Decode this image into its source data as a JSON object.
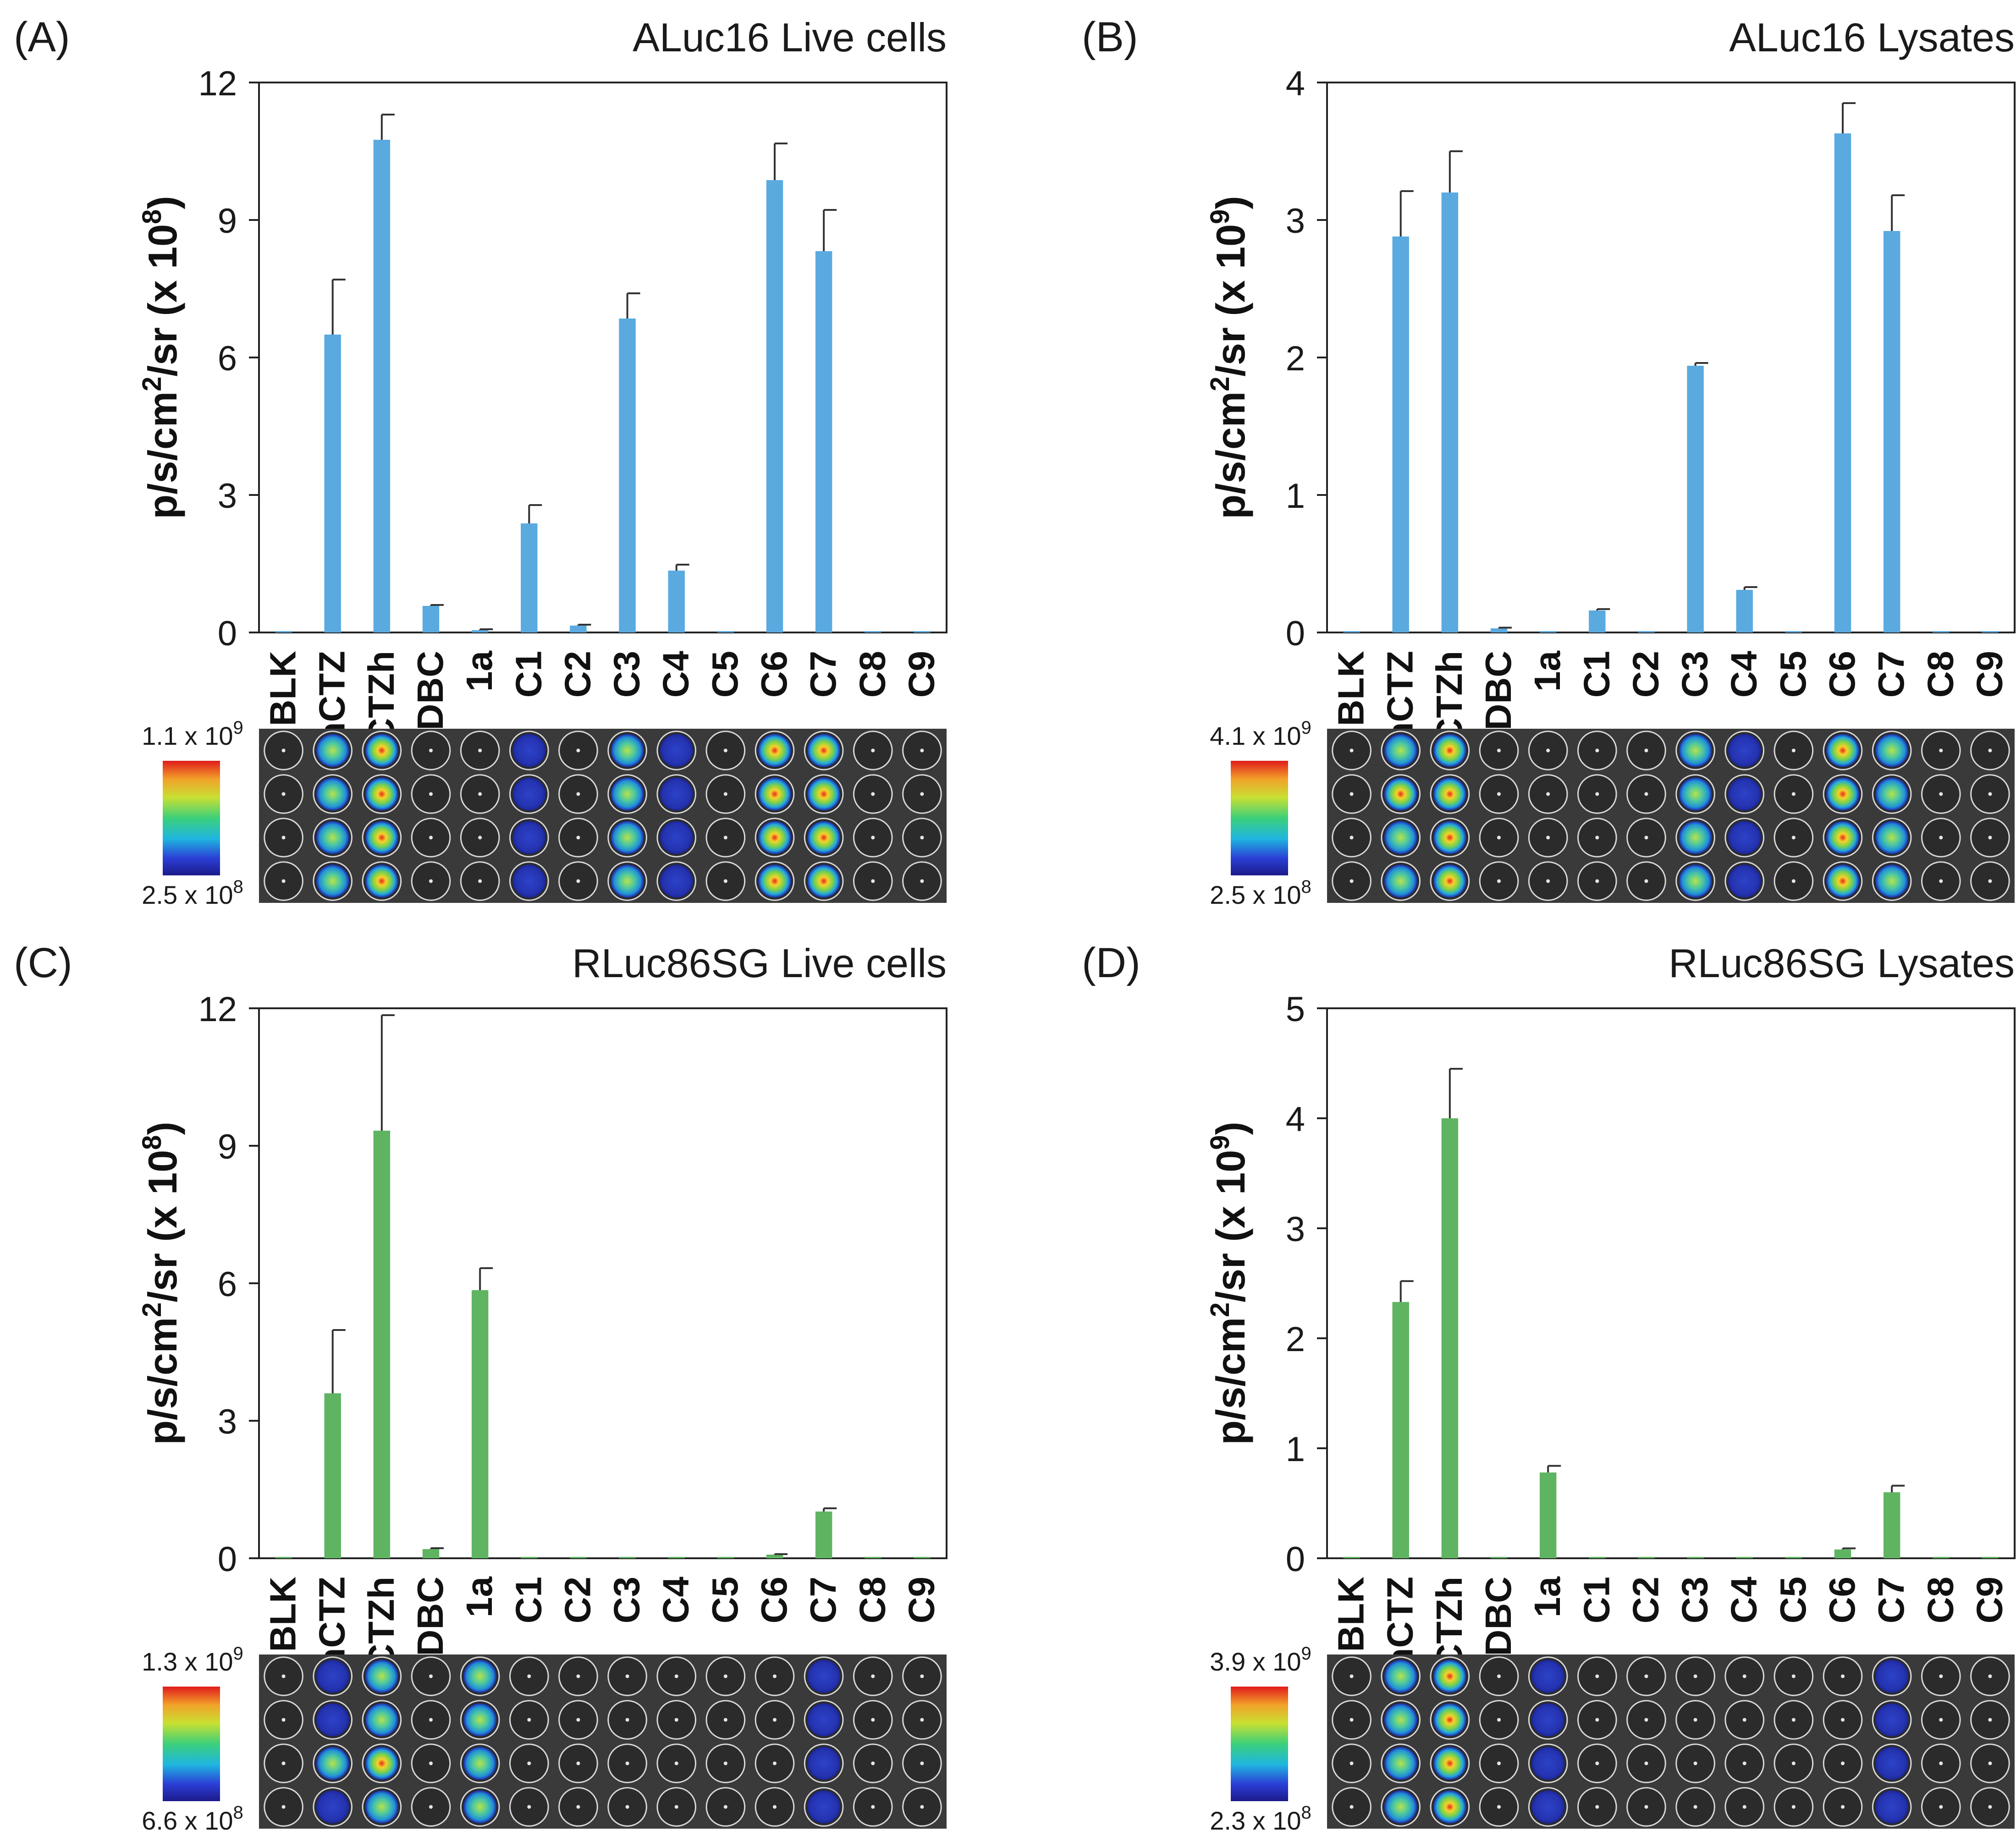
{
  "figure": {
    "background": "#ffffff"
  },
  "chart_data": [
    {
      "panel": "(A)",
      "type": "bar",
      "title": "ALuc16 Live cells",
      "ylabel_main": "p/s/cm",
      "ylabel_sup1": "2",
      "ylabel_mid": "/sr (x 10",
      "ylabel_sup2": "8",
      "ylabel_end": ")",
      "ylim": [
        0,
        12
      ],
      "yticks": [
        "0",
        "3",
        "6",
        "9",
        "12"
      ],
      "categories": [
        "BLK",
        "nCTZ",
        "CTZh",
        "DBC",
        "1a",
        "C1",
        "C2",
        "C3",
        "C4",
        "C5",
        "C6",
        "C7",
        "C8",
        "C9"
      ],
      "values": [
        0.02,
        6.5,
        10.75,
        0.58,
        0.05,
        2.38,
        0.15,
        6.85,
        1.35,
        0.02,
        9.87,
        8.32,
        0.01,
        0.01
      ],
      "errors": [
        0,
        1.2,
        0.55,
        0.02,
        0.02,
        0.4,
        0.02,
        0.55,
        0.13,
        0,
        0.8,
        0.9,
        0,
        0
      ],
      "color": "#5aaae0",
      "colorbar": {
        "max_label": "1.1 x 10",
        "max_sup": "9",
        "min_label": "2.5 x 10",
        "min_sup": "8"
      },
      "plate": {
        "wells": [
          [
            0,
            0,
            0,
            0
          ],
          [
            2,
            2,
            2,
            2
          ],
          [
            3,
            3,
            3,
            3
          ],
          [
            0,
            0,
            0,
            0
          ],
          [
            0,
            0,
            0,
            0
          ],
          [
            1,
            1,
            1,
            1
          ],
          [
            0,
            0,
            0,
            0
          ],
          [
            2,
            2,
            2,
            2
          ],
          [
            1,
            1,
            1,
            1
          ],
          [
            0,
            0,
            0,
            0
          ],
          [
            3,
            3,
            3,
            3
          ],
          [
            3,
            3,
            3,
            3
          ],
          [
            0,
            0,
            0,
            0
          ],
          [
            0,
            0,
            0,
            0
          ]
        ]
      }
    },
    {
      "panel": "(B)",
      "type": "bar",
      "title": "ALuc16 Lysates",
      "ylabel_main": "p/s/cm",
      "ylabel_sup1": "2",
      "ylabel_mid": "/sr (x 10",
      "ylabel_sup2": "9",
      "ylabel_end": ")",
      "ylim": [
        0,
        4
      ],
      "yticks": [
        "0",
        "1",
        "2",
        "3",
        "4"
      ],
      "categories": [
        "BLK",
        "nCTZ",
        "CTZh",
        "DBC",
        "1a",
        "C1",
        "C2",
        "C3",
        "C4",
        "C5",
        "C6",
        "C7",
        "C8",
        "C9"
      ],
      "values": [
        0.01,
        2.88,
        3.2,
        0.03,
        0.01,
        0.16,
        0.01,
        1.94,
        0.31,
        0.01,
        3.63,
        2.92,
        0.01,
        0.01
      ],
      "errors": [
        0,
        0.33,
        0.3,
        0.005,
        0,
        0.01,
        0,
        0.02,
        0.02,
        0,
        0.22,
        0.26,
        0,
        0
      ],
      "color": "#5aaae0",
      "colorbar": {
        "max_label": "4.1 x 10",
        "max_sup": "9",
        "min_label": "2.5 x 10",
        "min_sup": "8"
      },
      "plate": {
        "wells": [
          [
            0,
            0,
            0,
            0
          ],
          [
            2,
            3,
            2,
            2
          ],
          [
            3,
            3,
            3,
            3
          ],
          [
            0,
            0,
            0,
            0
          ],
          [
            0,
            0,
            0,
            0
          ],
          [
            0,
            0,
            0,
            0
          ],
          [
            0,
            0,
            0,
            0
          ],
          [
            2,
            2,
            2,
            2
          ],
          [
            1,
            1,
            1,
            1
          ],
          [
            0,
            0,
            0,
            0
          ],
          [
            3,
            3,
            3,
            3
          ],
          [
            2,
            2,
            2,
            2
          ],
          [
            0,
            0,
            0,
            0
          ],
          [
            0,
            0,
            0,
            0
          ]
        ]
      }
    },
    {
      "panel": "(C)",
      "type": "bar",
      "title": "RLuc86SG Live cells",
      "ylabel_main": "p/s/cm",
      "ylabel_sup1": "2",
      "ylabel_mid": "/sr (x 10",
      "ylabel_sup2": "8",
      "ylabel_end": ")",
      "ylim": [
        0,
        12
      ],
      "yticks": [
        "0",
        "3",
        "6",
        "9",
        "12"
      ],
      "categories": [
        "BLK",
        "nCTZ",
        "CTZh",
        "DBC",
        "1a",
        "C1",
        "C2",
        "C3",
        "C4",
        "C5",
        "C6",
        "C7",
        "C8",
        "C9"
      ],
      "values": [
        0.0,
        3.6,
        9.33,
        0.2,
        5.85,
        0.02,
        0.0,
        0.02,
        0.0,
        0.0,
        0.08,
        1.02,
        0.0,
        0.0
      ],
      "errors": [
        0,
        1.38,
        2.52,
        0.02,
        0.48,
        0,
        0,
        0,
        0,
        0,
        0.01,
        0.07,
        0,
        0
      ],
      "color": "#5fb461",
      "colorbar": {
        "max_label": "1.3 x 10",
        "max_sup": "9",
        "min_label": "6.6 x 10",
        "min_sup": "8"
      },
      "plate": {
        "wells": [
          [
            0,
            0,
            0,
            0
          ],
          [
            1,
            1,
            2,
            1
          ],
          [
            2,
            2,
            3,
            2
          ],
          [
            0,
            0,
            0,
            0
          ],
          [
            2,
            2,
            2,
            2
          ],
          [
            0,
            0,
            0,
            0
          ],
          [
            0,
            0,
            0,
            0
          ],
          [
            0,
            0,
            0,
            0
          ],
          [
            0,
            0,
            0,
            0
          ],
          [
            0,
            0,
            0,
            0
          ],
          [
            0,
            0,
            0,
            0
          ],
          [
            1,
            1,
            1,
            1
          ],
          [
            0,
            0,
            0,
            0
          ],
          [
            0,
            0,
            0,
            0
          ]
        ]
      }
    },
    {
      "panel": "(D)",
      "type": "bar",
      "title": "RLuc86SG Lysates",
      "ylabel_main": "p/s/cm",
      "ylabel_sup1": "2",
      "ylabel_mid": "/sr (x 10",
      "ylabel_sup2": "9",
      "ylabel_end": ")",
      "ylim": [
        0,
        5
      ],
      "yticks": [
        "0",
        "1",
        "2",
        "3",
        "4",
        "5"
      ],
      "categories": [
        "BLK",
        "nCTZ",
        "CTZh",
        "DBC",
        "1a",
        "C1",
        "C2",
        "C3",
        "C4",
        "C5",
        "C6",
        "C7",
        "C8",
        "C9"
      ],
      "values": [
        0.0,
        2.33,
        4.0,
        0.01,
        0.78,
        0.0,
        0.0,
        0.01,
        0.0,
        0.0,
        0.08,
        0.6,
        0.0,
        0.0
      ],
      "errors": [
        0,
        0.19,
        0.45,
        0,
        0.06,
        0,
        0,
        0,
        0,
        0,
        0.01,
        0.06,
        0,
        0
      ],
      "color": "#5fb461",
      "colorbar": {
        "max_label": "3.9 x 10",
        "max_sup": "9",
        "min_label": "2.3 x 10",
        "min_sup": "8"
      },
      "plate": {
        "wells": [
          [
            0,
            0,
            0,
            0
          ],
          [
            2,
            2,
            2,
            2
          ],
          [
            3,
            3,
            3,
            3
          ],
          [
            0,
            0,
            0,
            0
          ],
          [
            1,
            1,
            1,
            1
          ],
          [
            0,
            0,
            0,
            0
          ],
          [
            0,
            0,
            0,
            0
          ],
          [
            0,
            0,
            0,
            0
          ],
          [
            0,
            0,
            0,
            0
          ],
          [
            0,
            0,
            0,
            0
          ],
          [
            0,
            0,
            0,
            0
          ],
          [
            1,
            1,
            1,
            1
          ],
          [
            0,
            0,
            0,
            0
          ],
          [
            0,
            0,
            0,
            0
          ]
        ]
      }
    }
  ]
}
